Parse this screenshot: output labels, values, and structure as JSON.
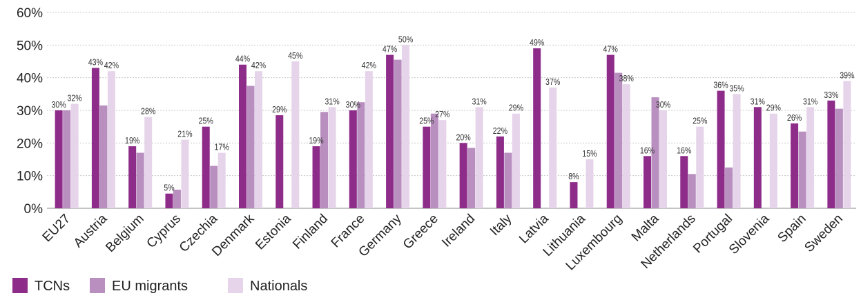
{
  "chart_data": {
    "type": "bar",
    "categories": [
      "EU27",
      "Austria",
      "Belgium",
      "Cyprus",
      "Czechia",
      "Denmark",
      "Estonia",
      "Finland",
      "France",
      "Germany",
      "Greece",
      "Ireland",
      "Italy",
      "Latvia",
      "Lithuania",
      "Luxembourg",
      "Malta",
      "Netherlands",
      "Portugal",
      "Slovenia",
      "Spain",
      "Sweden"
    ],
    "series": [
      {
        "name": "TCNs",
        "color": "#8e2c8a",
        "values": [
          30,
          43,
          19,
          4.5,
          25,
          44,
          28.5,
          19,
          30,
          47,
          25,
          20,
          22,
          49,
          8,
          47,
          16,
          16,
          36,
          31,
          26,
          33
        ],
        "labels": [
          "30%",
          "43%",
          "19%",
          "5%",
          "25%",
          "44%",
          "29%",
          "19%",
          "30%",
          "47%",
          "25%",
          "20%",
          "22%",
          "49%",
          "8%",
          "47%",
          "16%",
          "16%",
          "36%",
          "31%",
          "26%",
          "33%"
        ]
      },
      {
        "name": "EU migrants",
        "color": "#b98fc0",
        "values": [
          30,
          31.5,
          17,
          5.7,
          13,
          37.5,
          null,
          29.5,
          32.5,
          45.5,
          29,
          18.5,
          17,
          null,
          null,
          41.5,
          34,
          10.5,
          12.5,
          null,
          23.5,
          30.5
        ],
        "labels": [
          "",
          "",
          "",
          "",
          "",
          "",
          "",
          "",
          "",
          "",
          "",
          "",
          "",
          "",
          "",
          "",
          "",
          "",
          "",
          "",
          "",
          ""
        ]
      },
      {
        "name": "Nationals",
        "color": "#e6d4ea",
        "values": [
          32,
          42,
          28,
          21,
          17,
          42,
          45,
          31,
          42,
          50,
          27,
          31,
          29,
          37,
          15,
          38,
          30,
          25,
          35,
          29,
          31,
          39
        ],
        "labels": [
          "32%",
          "42%",
          "28%",
          "21%",
          "17%",
          "42%",
          "45%",
          "31%",
          "42%",
          "50%",
          "27%",
          "31%",
          "29%",
          "37%",
          "15%",
          "38%",
          "30%",
          "25%",
          "35%",
          "29%",
          "31%",
          "39%"
        ]
      }
    ],
    "ylim": [
      0,
      60
    ],
    "yticks": [
      0,
      10,
      20,
      30,
      40,
      50,
      60
    ],
    "ytick_labels": [
      "0%",
      "10%",
      "20%",
      "30%",
      "40%",
      "50%",
      "60%"
    ],
    "grid": true,
    "legend_position": "bottom-left",
    "title": "",
    "xlabel": "",
    "ylabel": ""
  }
}
